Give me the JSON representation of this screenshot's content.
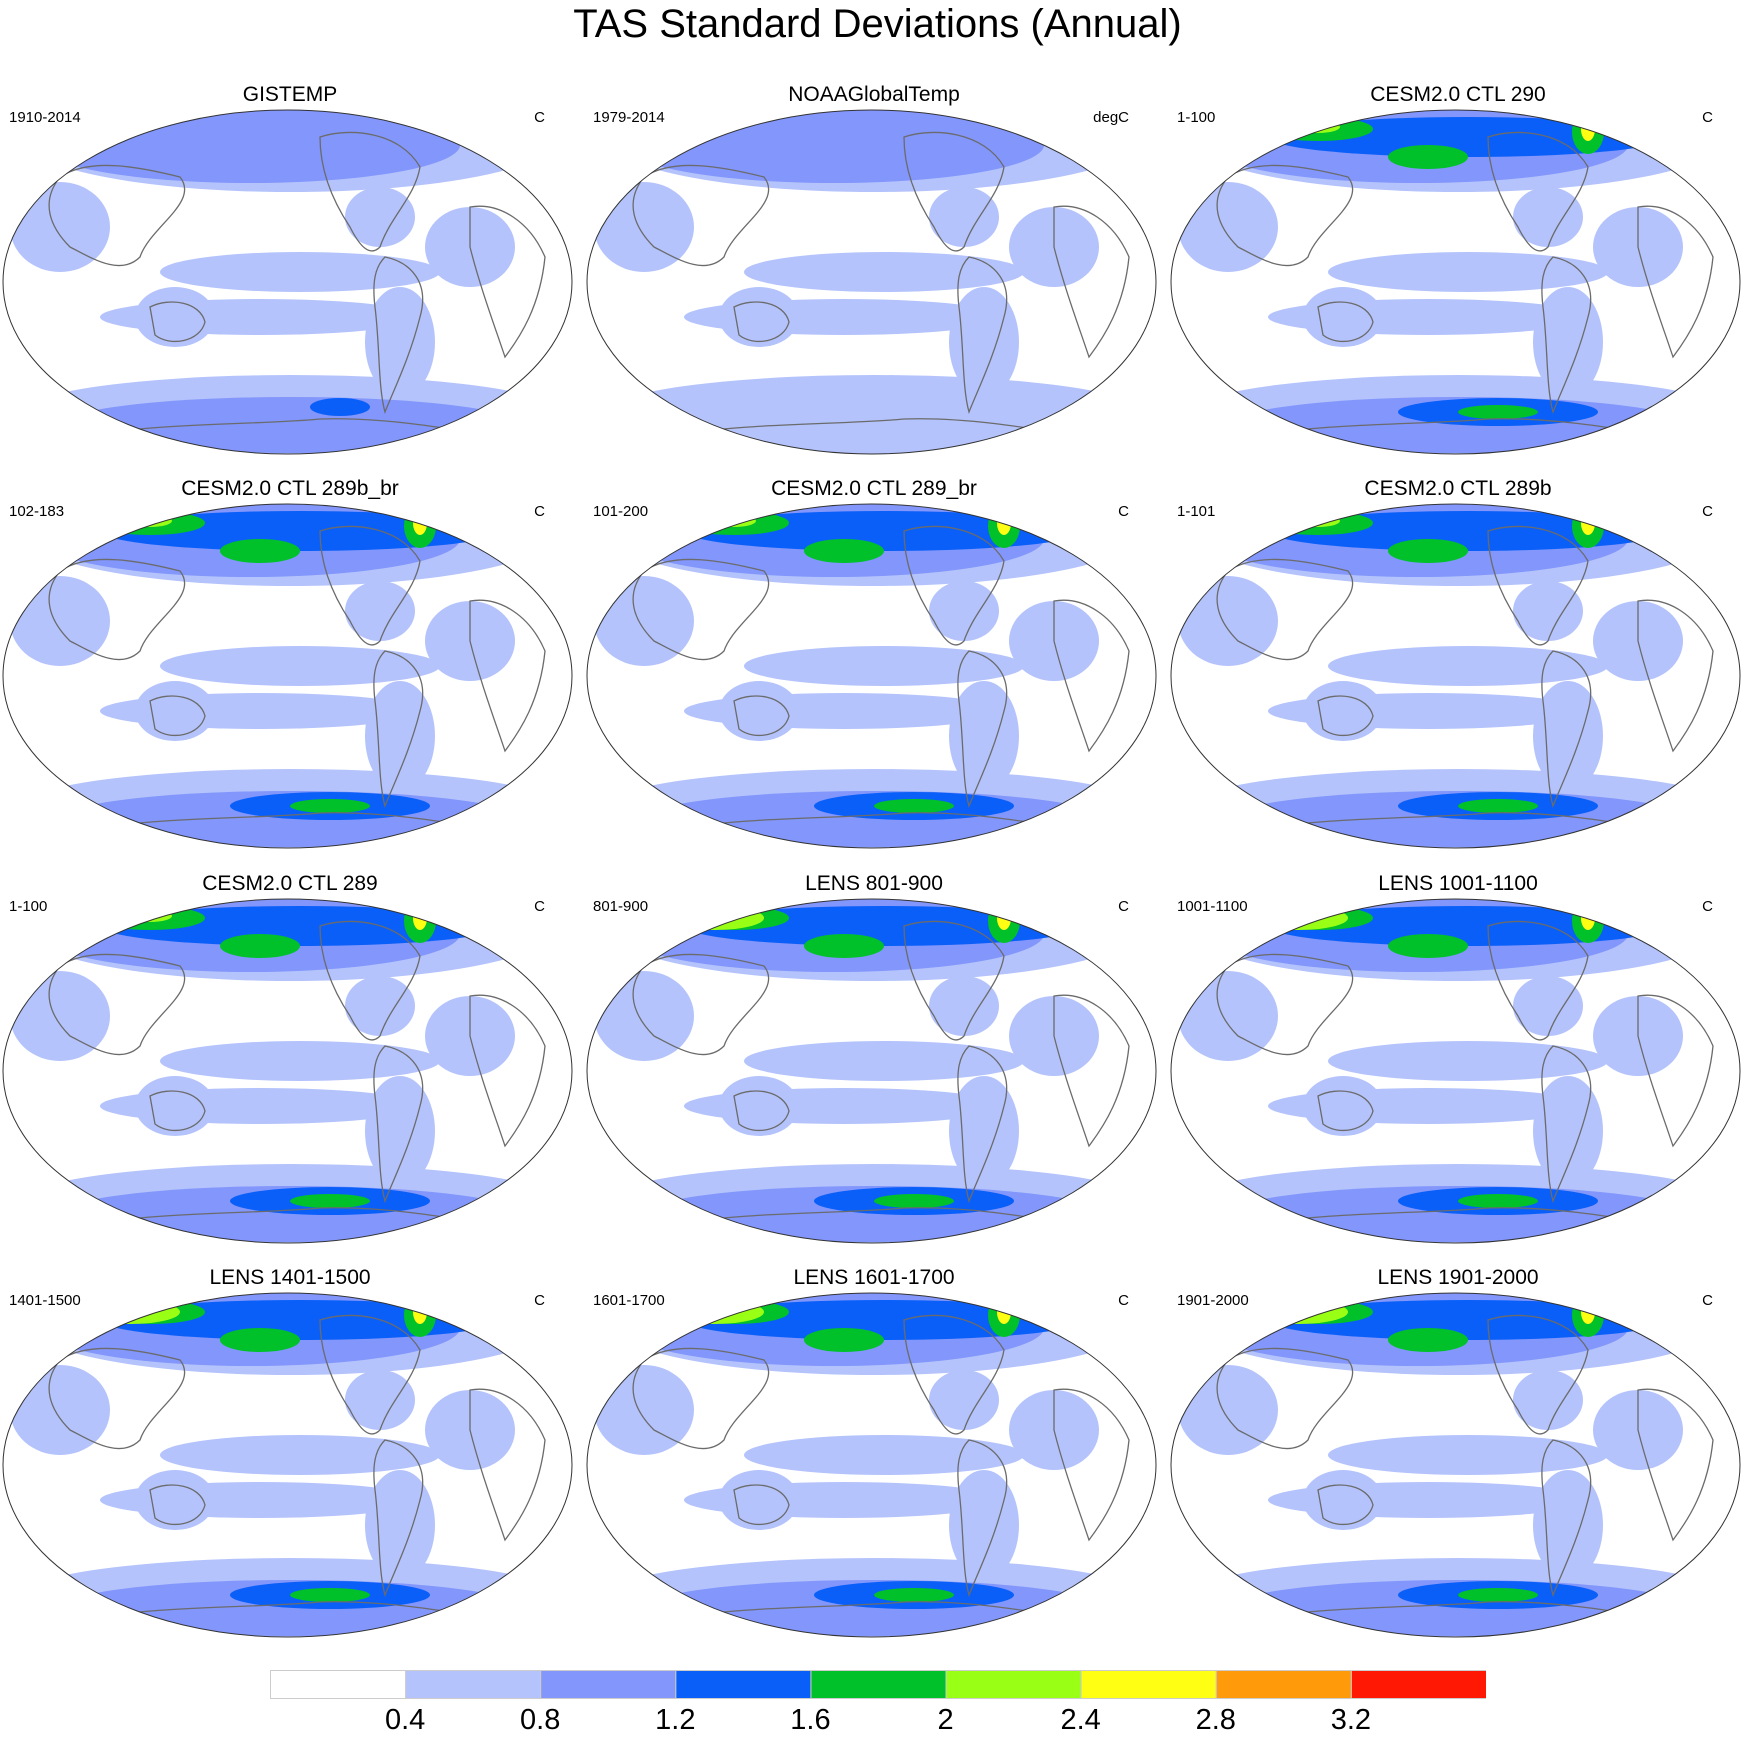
{
  "figure": {
    "title": "TAS Standard Deviations (Annual)"
  },
  "panels": [
    {
      "title": "GISTEMP",
      "left": "1910-2014",
      "right": "C",
      "variant": "obs"
    },
    {
      "title": "NOAAGlobalTemp",
      "left": "1979-2014",
      "right": "degC",
      "variant": "obs2"
    },
    {
      "title": "CESM2.0 CTL 290",
      "left": "1-100",
      "right": "C",
      "variant": "model"
    },
    {
      "title": "CESM2.0 CTL 289b_br",
      "left": "102-183",
      "right": "C",
      "variant": "model"
    },
    {
      "title": "CESM2.0 CTL 289_br",
      "left": "101-200",
      "right": "C",
      "variant": "model"
    },
    {
      "title": "CESM2.0 CTL 289b",
      "left": "1-101",
      "right": "C",
      "variant": "model"
    },
    {
      "title": "CESM2.0 CTL 289",
      "left": "1-100",
      "right": "C",
      "variant": "model"
    },
    {
      "title": "LENS 801-900",
      "left": "801-900",
      "right": "C",
      "variant": "lens"
    },
    {
      "title": "LENS 1001-1100",
      "left": "1001-1100",
      "right": "C",
      "variant": "lens"
    },
    {
      "title": "LENS 1401-1500",
      "left": "1401-1500",
      "right": "C",
      "variant": "lens"
    },
    {
      "title": "LENS 1601-1700",
      "left": "1601-1700",
      "right": "C",
      "variant": "lens"
    },
    {
      "title": "LENS 1901-2000",
      "left": "1901-2000",
      "right": "C",
      "variant": "lens"
    }
  ],
  "colorbar": {
    "levels": [
      "0.4",
      "0.8",
      "1.2",
      "1.6",
      "2",
      "2.4",
      "2.8",
      "3.2"
    ],
    "colors": [
      "#ffffff",
      "#b4c3fb",
      "#8296fb",
      "#0a5ff8",
      "#00c129",
      "#99ff14",
      "#ffff14",
      "#ff9b0a",
      "#ff1905"
    ]
  }
}
